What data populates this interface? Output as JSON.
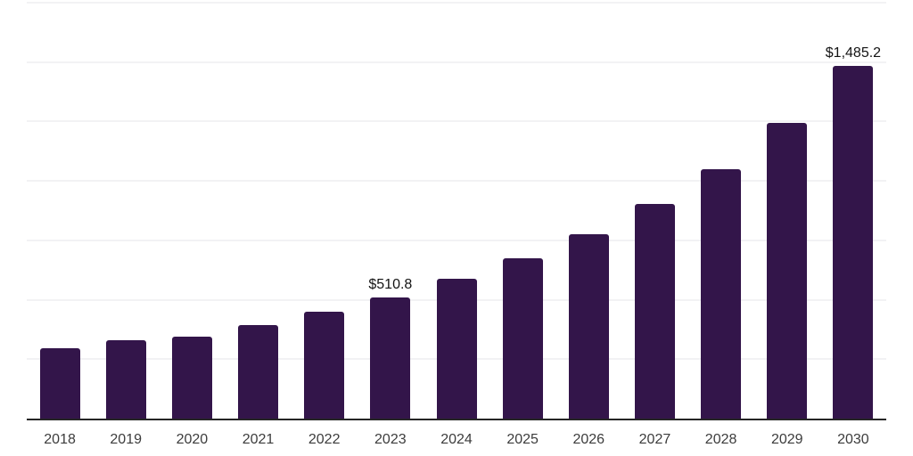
{
  "chart_data": {
    "type": "bar",
    "title": "",
    "xlabel": "",
    "ylabel": "",
    "categories": [
      "2018",
      "2019",
      "2020",
      "2021",
      "2022",
      "2023",
      "2024",
      "2025",
      "2026",
      "2027",
      "2028",
      "2029",
      "2030"
    ],
    "values": [
      296,
      328,
      344,
      395,
      448,
      510.8,
      587,
      674,
      777,
      904,
      1051,
      1246,
      1485.2
    ],
    "data_labels": [
      null,
      null,
      null,
      null,
      null,
      "$510.8",
      null,
      null,
      null,
      null,
      null,
      null,
      "$1,485.2"
    ],
    "ylim": [
      0,
      1750
    ],
    "gridline_step": 250,
    "y_tick_labels_visible": false,
    "grid": "horizontal",
    "legend_position": "none",
    "colors": {
      "bar": "#33154A",
      "axis_line": "#262626",
      "gridline": "#f2f2f4",
      "tick_label": "#3c3c3c",
      "data_label": "#141414",
      "background": "#ffffff"
    }
  }
}
